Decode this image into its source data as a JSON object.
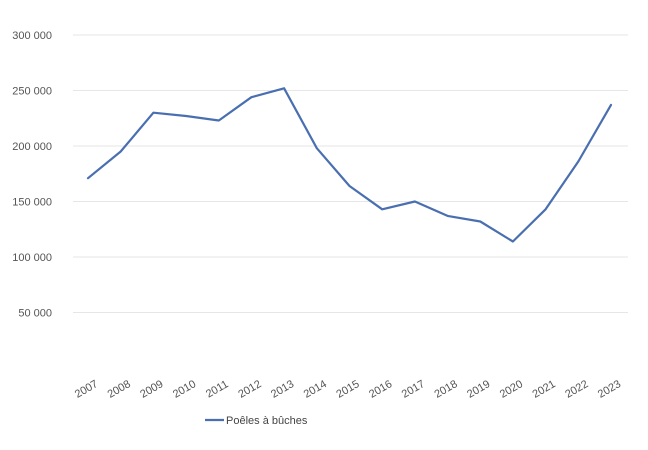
{
  "chart_data": {
    "type": "line",
    "title": "",
    "xlabel": "",
    "ylabel": "",
    "x": [
      "2007",
      "2008",
      "2009",
      "2010",
      "2011",
      "2012",
      "2013",
      "2014",
      "2015",
      "2016",
      "2017",
      "2018",
      "2019",
      "2020",
      "2021",
      "2022",
      "2023"
    ],
    "series": [
      {
        "name": "Poêles à bûches",
        "color": "#4a6fb0",
        "values": [
          171000,
          195000,
          230000,
          227000,
          223000,
          244000,
          252000,
          198000,
          164000,
          143000,
          150000,
          137000,
          132000,
          114000,
          143000,
          186000,
          237000
        ]
      }
    ],
    "ylim": [
      0,
      300000
    ],
    "yticks": [
      50000,
      100000,
      150000,
      200000,
      250000,
      300000
    ],
    "ytick_labels": [
      "50 000",
      "100 000",
      "150 000",
      "200 000",
      "250 000",
      "300 000"
    ],
    "grid": true,
    "legend_position": "bottom-left",
    "colors": {
      "line": "#4a6fb0",
      "grid": "#e6e6e6",
      "tick_text": "#555555"
    }
  }
}
